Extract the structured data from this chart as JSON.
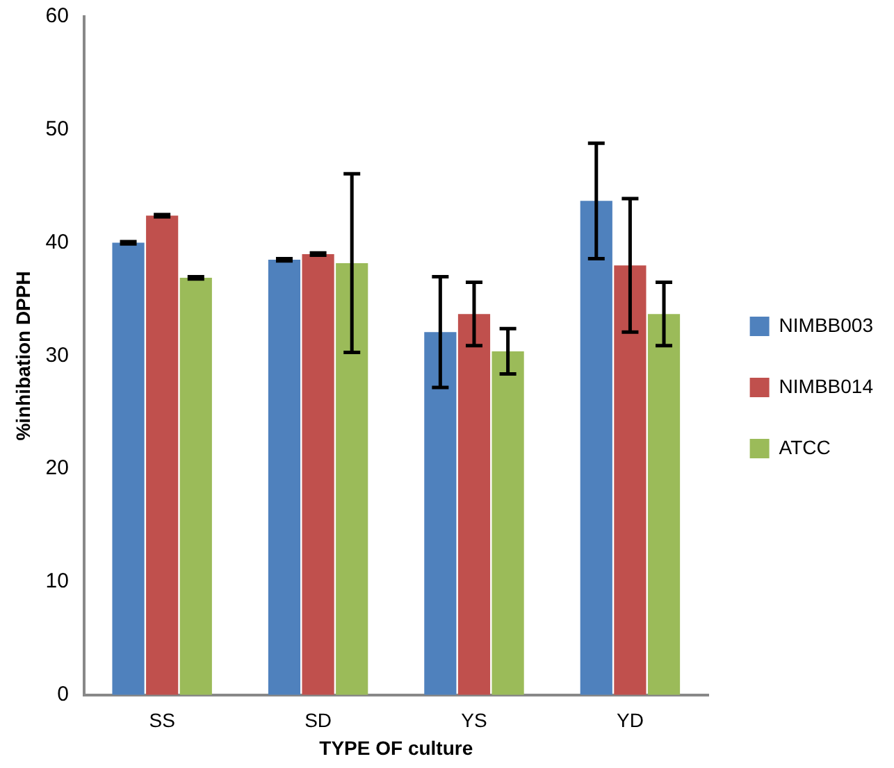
{
  "chart_data": {
    "type": "bar",
    "xlabel": "TYPE OF culture",
    "ylabel": "%inhibation DPPH",
    "categories": [
      "SS",
      "SD",
      "YS",
      "YD"
    ],
    "series": [
      {
        "name": "NIMBB003",
        "color": "#4f81bd",
        "values": [
          40.0,
          38.5,
          32.1,
          43.7
        ],
        "errors": [
          0.1,
          0.1,
          4.9,
          5.1
        ]
      },
      {
        "name": "NIMBB014",
        "color": "#c0504d",
        "values": [
          42.4,
          39.0,
          33.7,
          38.0
        ],
        "errors": [
          0.1,
          0.1,
          2.8,
          5.9
        ]
      },
      {
        "name": "ATCC",
        "color": "#9bbb59",
        "values": [
          36.9,
          38.2,
          30.4,
          33.7
        ],
        "errors": [
          0.1,
          7.9,
          2.0,
          2.8
        ]
      }
    ],
    "ylim": [
      0,
      60
    ],
    "yticks": [
      0,
      10,
      20,
      30,
      40,
      50,
      60
    ],
    "grid": false,
    "legend": "right"
  }
}
